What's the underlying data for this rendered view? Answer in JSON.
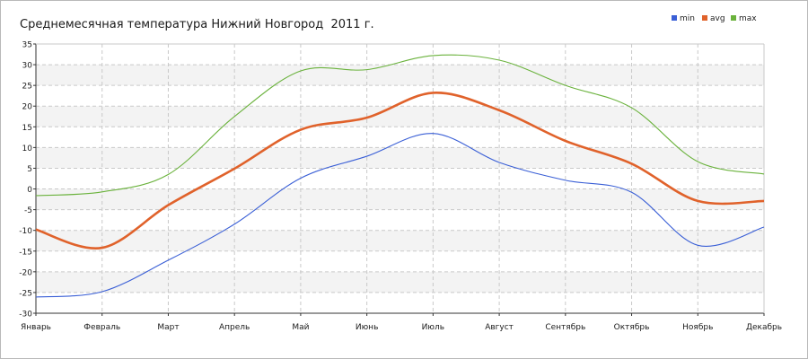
{
  "chart_data": {
    "type": "line",
    "title": "Среднемесячная температура Нижний Новгород  2011 г.",
    "categories": [
      "Январь",
      "Февраль",
      "Март",
      "Апрель",
      "Май",
      "Июнь",
      "Июль",
      "Август",
      "Сентябрь",
      "Октябрь",
      "Ноябрь",
      "Декабрь"
    ],
    "y_ticks": [
      35,
      30,
      25,
      20,
      15,
      10,
      5,
      0,
      -5,
      -10,
      -15,
      -20,
      -25,
      -30
    ],
    "ylim": [
      -30,
      35
    ],
    "grid": true,
    "legend_position": "top-right",
    "series": [
      {
        "name": "min",
        "color": "#3a5fd6",
        "values": [
          -26.1,
          -24.8,
          -17.2,
          -8.5,
          2.6,
          7.9,
          13.4,
          6.4,
          2.1,
          -0.8,
          -13.6,
          -9.2
        ]
      },
      {
        "name": "avg",
        "color": "#e0622b",
        "values": [
          -9.8,
          -14.2,
          -3.9,
          4.9,
          14.3,
          17.2,
          23.2,
          19.0,
          11.6,
          6.1,
          -2.9,
          -2.9
        ]
      },
      {
        "name": "max",
        "color": "#6ab23c",
        "values": [
          -1.6,
          -0.7,
          3.5,
          17.5,
          28.5,
          28.8,
          32.2,
          31.1,
          25.0,
          19.6,
          6.6,
          3.6
        ]
      }
    ]
  }
}
